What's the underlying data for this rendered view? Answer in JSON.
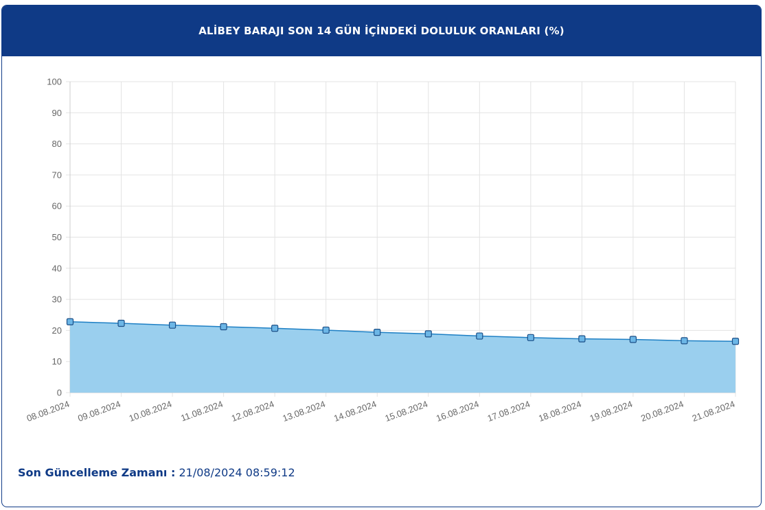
{
  "header": {
    "title": "ALİBEY BARAJI SON 14 GÜN İÇİNDEKİ DOLULUK ORANLARI (%)"
  },
  "chart_data": {
    "type": "area",
    "title": "ALİBEY BARAJI SON 14 GÜN İÇİNDEKİ DOLULUK ORANLARI (%)",
    "categories": [
      "08.08.2024",
      "09.08.2024",
      "10.08.2024",
      "11.08.2024",
      "12.08.2024",
      "13.08.2024",
      "14.08.2024",
      "15.08.2024",
      "16.08.2024",
      "17.08.2024",
      "18.08.2024",
      "19.08.2024",
      "20.08.2024",
      "21.08.2024"
    ],
    "values": [
      22.8,
      22.3,
      21.7,
      21.2,
      20.7,
      20.1,
      19.4,
      18.9,
      18.2,
      17.7,
      17.3,
      17.1,
      16.7,
      16.5
    ],
    "ylim": [
      0,
      100
    ],
    "yticks": [
      0,
      10,
      20,
      30,
      40,
      50,
      60,
      70,
      80,
      90,
      100
    ],
    "grid": true,
    "colors": {
      "line": "#1d7fc4",
      "fill": "#9acfee",
      "marker_fill": "#6cb6e6",
      "marker_stroke": "#1a4e86",
      "grid": "#e3e3e3"
    }
  },
  "footer": {
    "label": "Son Güncelleme Zamanı :",
    "value": "21/08/2024 08:59:12"
  }
}
